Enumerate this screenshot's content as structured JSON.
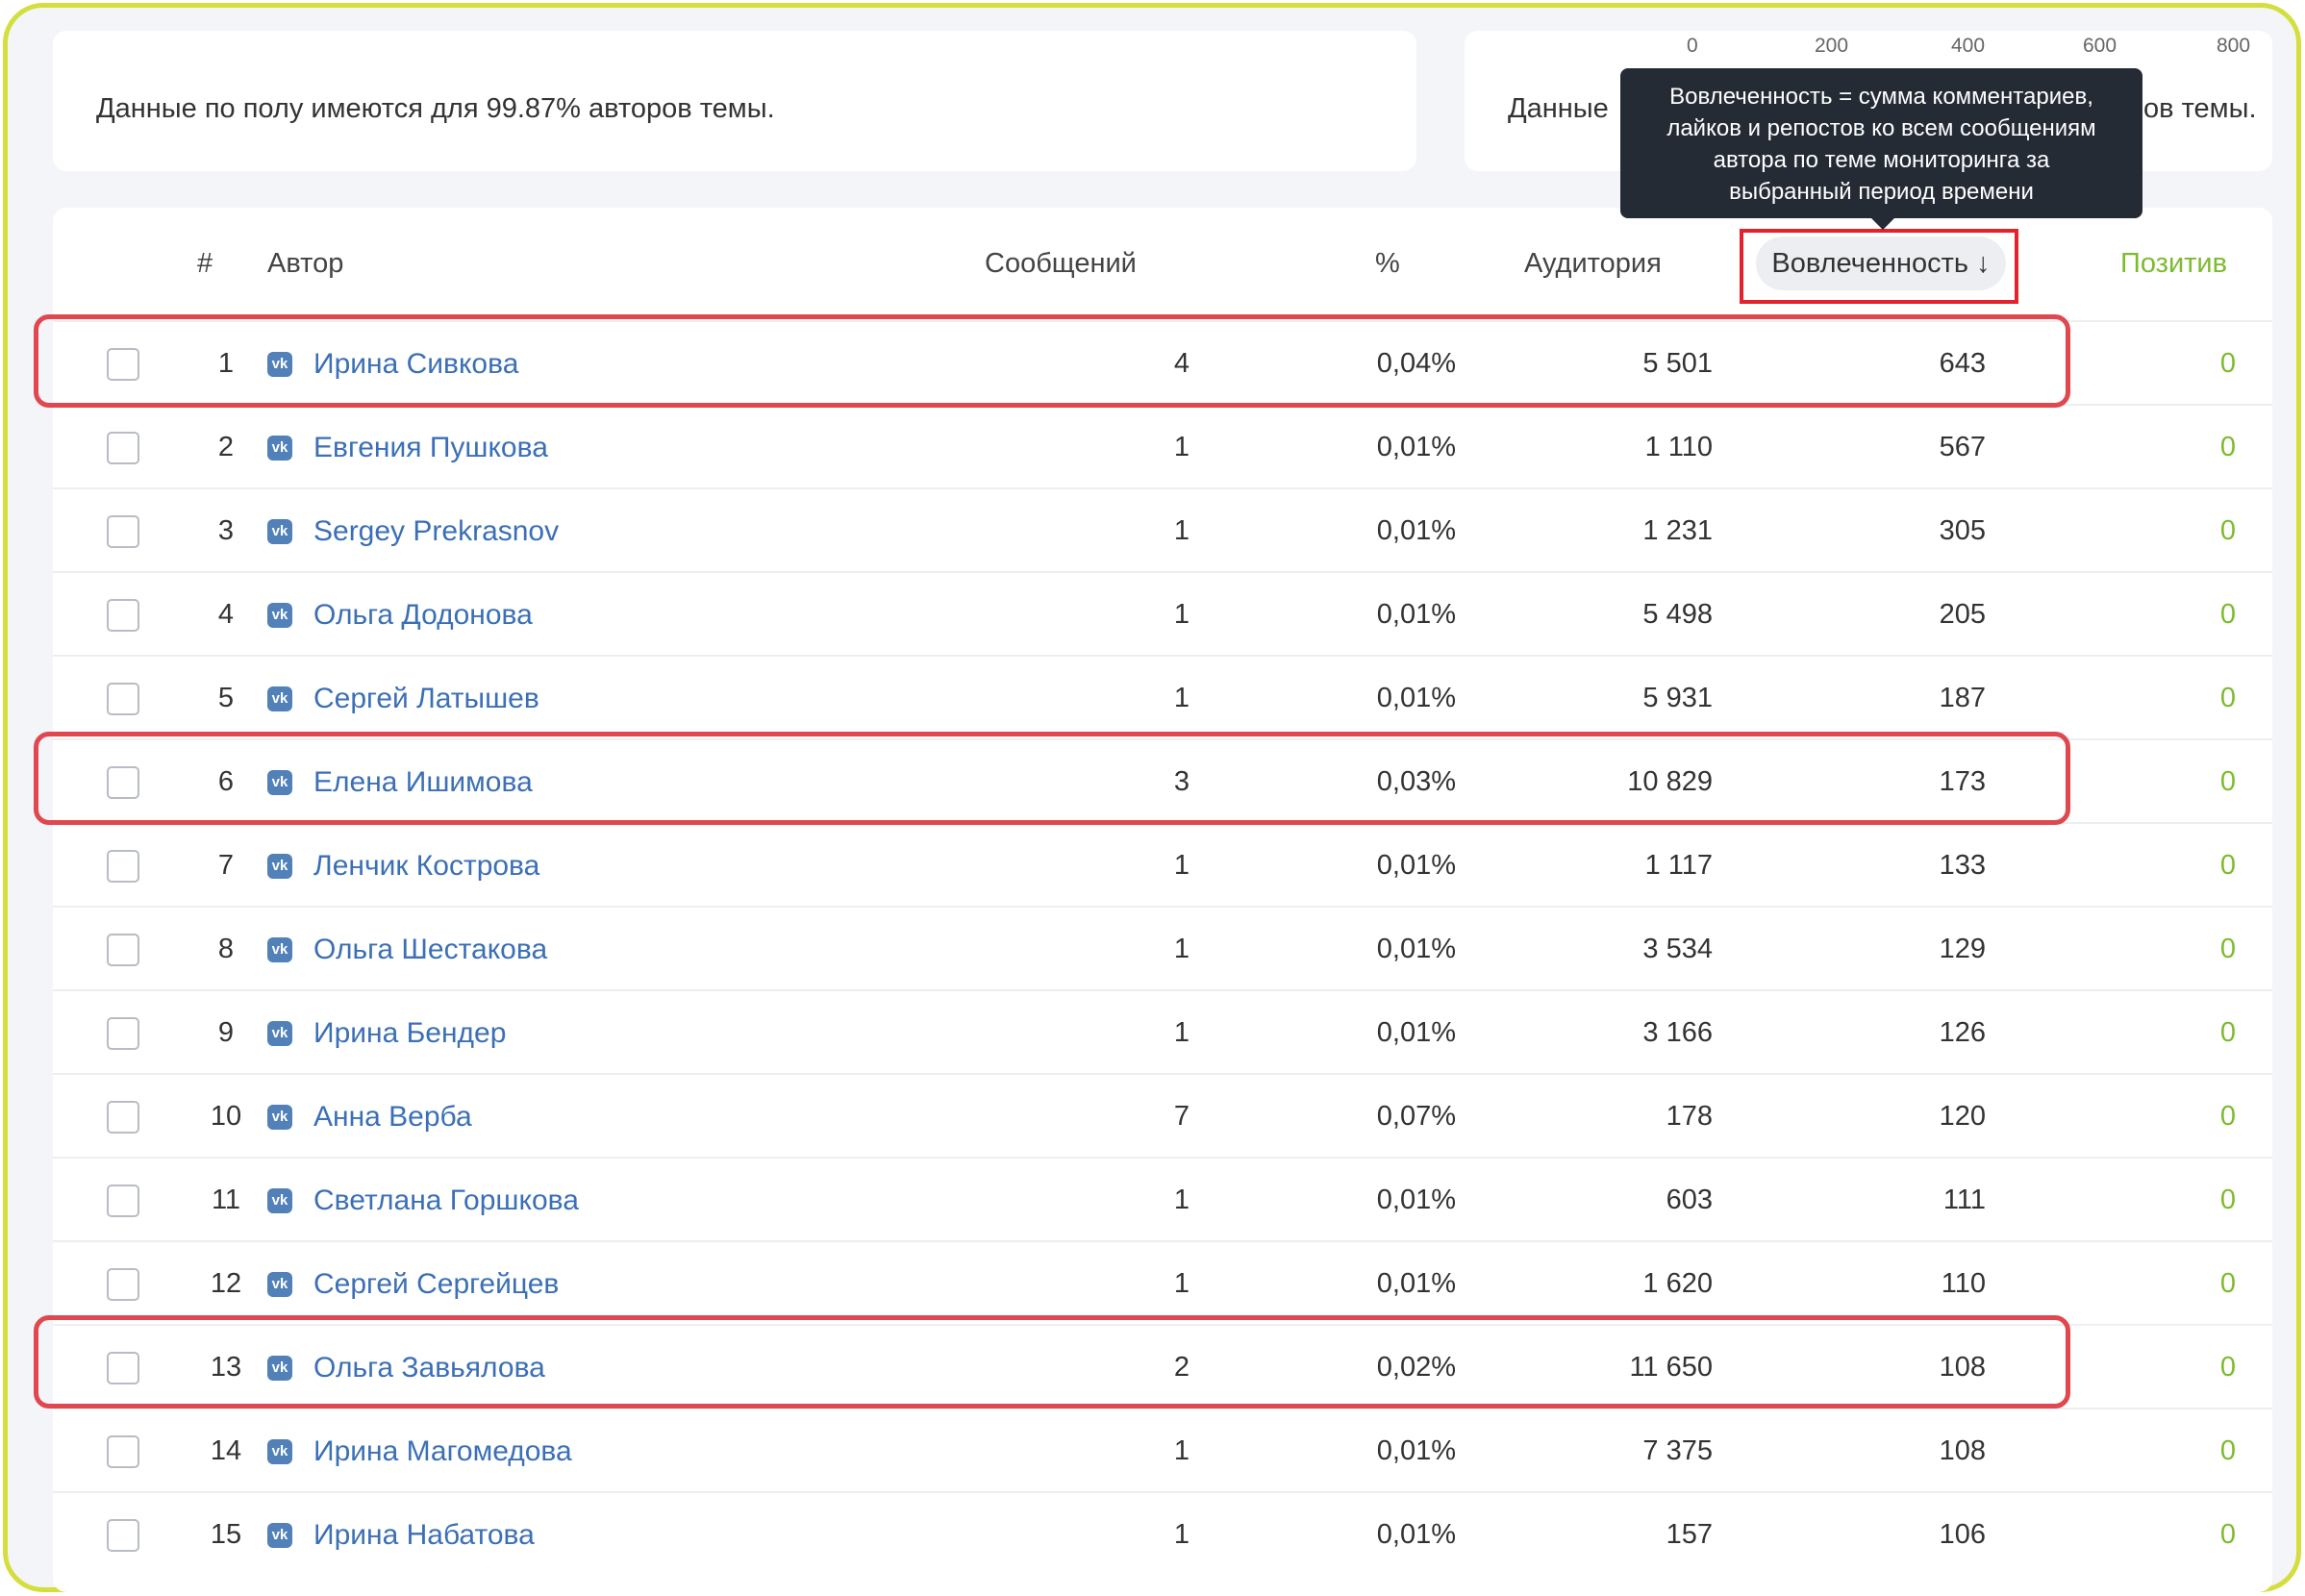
{
  "summary_left": "Данные по полу имеются для 99.87% авторов темы.",
  "summary_right_start": "Данные",
  "summary_right_end": "ов темы.",
  "scale_ticks": [
    "0",
    "200",
    "400",
    "600",
    "800"
  ],
  "tooltip_lines": [
    "Вовлеченность = сумма комментариев,",
    "лайков и репостов ко всем сообщениям",
    "автора по теме мониторинга за",
    "выбранный период времени"
  ],
  "columns": {
    "num": "#",
    "author": "Автор",
    "messages": "Сообщений",
    "percent": "%",
    "audience": "Аудитория",
    "engagement": "Вовлеченность ↓",
    "positive": "Позитив"
  },
  "vk_icon_label": "vk",
  "rows": [
    {
      "num": "1",
      "name": "Ирина Сивкова",
      "messages": "4",
      "percent": "0,04%",
      "audience": "5 501",
      "engagement": "643",
      "positive": "0"
    },
    {
      "num": "2",
      "name": "Евгения Пушкова",
      "messages": "1",
      "percent": "0,01%",
      "audience": "1 110",
      "engagement": "567",
      "positive": "0"
    },
    {
      "num": "3",
      "name": "Sergey Prekrasnov",
      "messages": "1",
      "percent": "0,01%",
      "audience": "1 231",
      "engagement": "305",
      "positive": "0"
    },
    {
      "num": "4",
      "name": "Ольга Додонова",
      "messages": "1",
      "percent": "0,01%",
      "audience": "5 498",
      "engagement": "205",
      "positive": "0"
    },
    {
      "num": "5",
      "name": "Сергей Латышев",
      "messages": "1",
      "percent": "0,01%",
      "audience": "5 931",
      "engagement": "187",
      "positive": "0"
    },
    {
      "num": "6",
      "name": "Елена Ишимова",
      "messages": "3",
      "percent": "0,03%",
      "audience": "10 829",
      "engagement": "173",
      "positive": "0"
    },
    {
      "num": "7",
      "name": "Ленчик Кострова",
      "messages": "1",
      "percent": "0,01%",
      "audience": "1 117",
      "engagement": "133",
      "positive": "0"
    },
    {
      "num": "8",
      "name": "Ольга Шестакова",
      "messages": "1",
      "percent": "0,01%",
      "audience": "3 534",
      "engagement": "129",
      "positive": "0"
    },
    {
      "num": "9",
      "name": "Ирина Бендер",
      "messages": "1",
      "percent": "0,01%",
      "audience": "3 166",
      "engagement": "126",
      "positive": "0"
    },
    {
      "num": "10",
      "name": "Анна Верба",
      "messages": "7",
      "percent": "0,07%",
      "audience": "178",
      "engagement": "120",
      "positive": "0"
    },
    {
      "num": "11",
      "name": "Светлана Горшкова",
      "messages": "1",
      "percent": "0,01%",
      "audience": "603",
      "engagement": "111",
      "positive": "0"
    },
    {
      "num": "12",
      "name": "Сергей Сергейцев",
      "messages": "1",
      "percent": "0,01%",
      "audience": "1 620",
      "engagement": "110",
      "positive": "0"
    },
    {
      "num": "13",
      "name": "Ольга Завьялова",
      "messages": "2",
      "percent": "0,02%",
      "audience": "11 650",
      "engagement": "108",
      "positive": "0"
    },
    {
      "num": "14",
      "name": "Ирина Магомедова",
      "messages": "1",
      "percent": "0,01%",
      "audience": "7 375",
      "engagement": "108",
      "positive": "0"
    },
    {
      "num": "15",
      "name": "Ирина Набатова",
      "messages": "1",
      "percent": "0,01%",
      "audience": "157",
      "engagement": "106",
      "positive": "0"
    }
  ],
  "colors": {
    "frame": "#d4de3d",
    "highlight": "#e0474f",
    "link": "#3b6fb6",
    "positive": "#7cbb2e",
    "tooltip_bg": "#252b35"
  }
}
